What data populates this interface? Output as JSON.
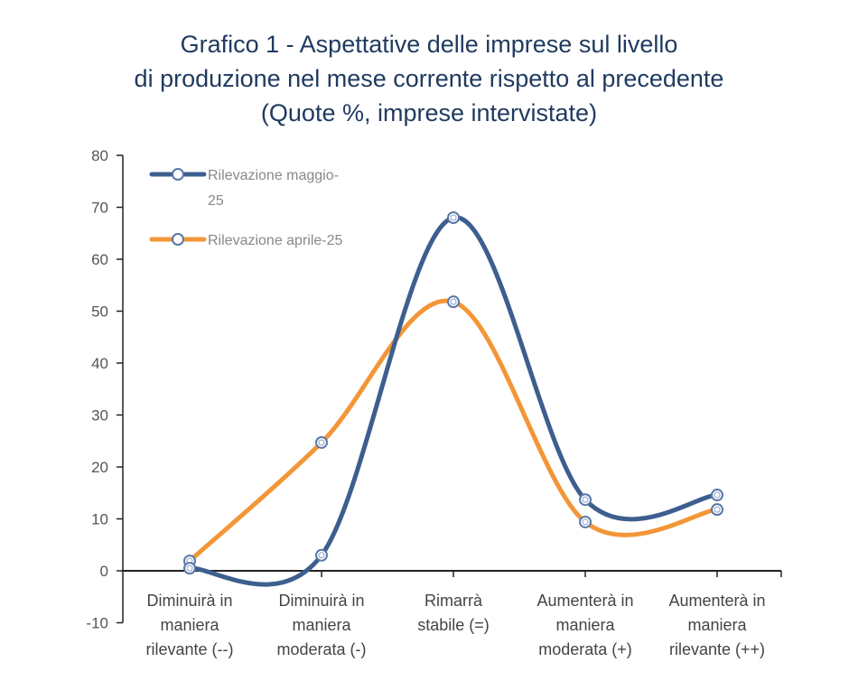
{
  "chart_data": {
    "type": "line",
    "title": [
      "Grafico 1 - Aspettative delle imprese sul livello",
      "di produzione nel mese corrente rispetto al precedente",
      "(Quote %, imprese intervistate)"
    ],
    "categories": [
      [
        "Diminuirà in",
        "maniera",
        "rilevante (--)"
      ],
      [
        "Diminuirà in",
        "maniera",
        "moderata (-)"
      ],
      [
        "Rimarrà",
        "stabile (=)"
      ],
      [
        "Aumenterà in",
        "maniera",
        "moderata (+)"
      ],
      [
        "Aumenterà in",
        "maniera",
        "rilevante (++)"
      ]
    ],
    "series": [
      {
        "name": [
          "Rilevazione maggio-",
          "25"
        ],
        "color": "#3d5f8f",
        "values": [
          0.5,
          3.0,
          68.0,
          13.7,
          14.6
        ]
      },
      {
        "name": [
          "Rilevazione aprile-25"
        ],
        "color": "#f39638",
        "values": [
          1.9,
          24.7,
          51.8,
          9.4,
          11.8
        ]
      }
    ],
    "ylim": [
      -10,
      80
    ],
    "yticks": [
      -10,
      0,
      10,
      20,
      30,
      40,
      50,
      60,
      70,
      80
    ],
    "smooth": true,
    "grid": false,
    "legend": "top-left"
  }
}
